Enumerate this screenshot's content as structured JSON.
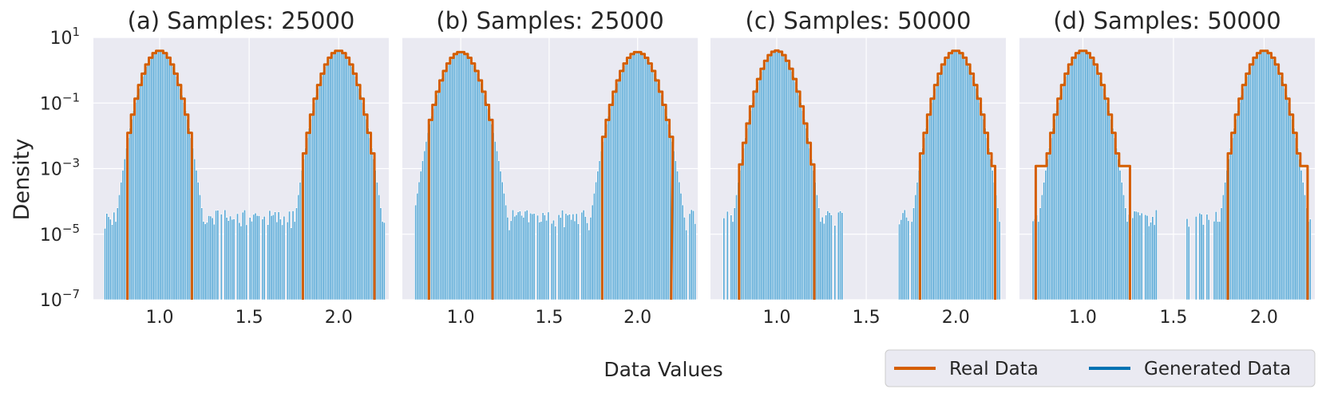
{
  "figure": {
    "ylabel": "Density",
    "xlabel": "Data Values",
    "legend": {
      "placement": "bottom-right",
      "entries": [
        {
          "label": "Real Data",
          "color": "#d55e00"
        },
        {
          "label": "Generated Data",
          "color": "#0072b2"
        }
      ]
    },
    "colors": {
      "panel_bg": "#eaeaf2",
      "grid": "#ffffff",
      "bar": "#58a8d6",
      "bar_edge": "#ffffff",
      "real_line": "#d55e00"
    }
  },
  "chart_data": [
    {
      "type": "bar",
      "title": "(a) Samples: 25000",
      "x_ticks": [
        1.0,
        1.5,
        2.0
      ],
      "x_tick_labels": [
        "1.0",
        "1.5",
        "2.0"
      ],
      "y_scale": "log",
      "y_ticks": [
        1e-07,
        1e-05,
        0.001,
        0.1,
        10
      ],
      "y_tick_labels": [
        {
          "base": "10",
          "exp": "−7"
        },
        {
          "base": "10",
          "exp": "−5"
        },
        {
          "base": "10",
          "exp": "−3"
        },
        {
          "base": "10",
          "exp": "−1"
        },
        {
          "base": "10",
          "exp": "1"
        }
      ],
      "xlim": [
        0.63,
        2.28
      ],
      "ylim": [
        1e-07,
        10
      ],
      "sigma": 0.05,
      "gen_range": [
        0.69,
        2.25
      ],
      "real_range": [
        0.82,
        2.2
      ],
      "real_edge_level": 0.001,
      "tail_floor": 1e-05,
      "gap": []
    },
    {
      "type": "bar",
      "title": "(b) Samples: 25000",
      "x_ticks": [
        1.0,
        1.5,
        2.0
      ],
      "x_tick_labels": [
        "1.0",
        "1.5",
        "2.0"
      ],
      "y_scale": "log",
      "xlim": [
        0.67,
        2.34
      ],
      "ylim": [
        1e-07,
        10
      ],
      "sigma": 0.055,
      "gen_range": [
        0.74,
        2.32
      ],
      "real_range": [
        0.82,
        2.19
      ],
      "real_edge_level": 0.001,
      "tail_floor": 1e-05,
      "gap": []
    },
    {
      "type": "bar",
      "title": "(c) Samples: 50000",
      "x_ticks": [
        1.0,
        1.5,
        2.0
      ],
      "x_tick_labels": [
        "1.0",
        "1.5",
        "2.0"
      ],
      "y_scale": "log",
      "xlim": [
        0.63,
        2.28
      ],
      "ylim": [
        1e-07,
        10
      ],
      "sigma": 0.05,
      "gen_range": [
        0.7,
        2.24
      ],
      "real_range": [
        0.79,
        2.22
      ],
      "real_edge_level": 0.001,
      "tail_floor": 1e-05,
      "gap": [
        1.37,
        1.67
      ]
    },
    {
      "type": "bar",
      "title": "(d) Samples: 50000",
      "x_ticks": [
        1.0,
        1.5,
        2.0
      ],
      "x_tick_labels": [
        "1.0",
        "1.5",
        "2.0"
      ],
      "y_scale": "log",
      "xlim": [
        0.65,
        2.28
      ],
      "ylim": [
        1e-07,
        10
      ],
      "sigma": 0.05,
      "gen_range": [
        0.72,
        2.25
      ],
      "real_range": [
        0.74,
        2.24
      ],
      "real_edge_level": 0.001,
      "tail_floor": 1e-05,
      "gap": [
        1.42,
        1.57
      ]
    }
  ]
}
